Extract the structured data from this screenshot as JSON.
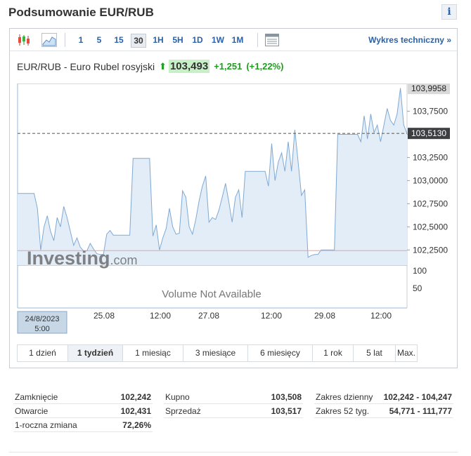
{
  "header": {
    "title": "Podsumowanie EUR/RUB",
    "info_label": "i"
  },
  "toolbar": {
    "timeframes": [
      "1",
      "5",
      "15",
      "30",
      "1H",
      "5H",
      "1D",
      "1W",
      "1M"
    ],
    "active_timeframe": "30",
    "tech_link": "Wykres techniczny »"
  },
  "quote": {
    "name": "EUR/RUB - Euro Rubel rosyjski",
    "price": "103,493",
    "change": "+1,251",
    "change_pct": "(+1,22%)",
    "up_color": "#1f9e1f"
  },
  "chart_data": {
    "type": "area",
    "y_ticks": [
      "103,7500",
      "103,5000",
      "103,2500",
      "103,0000",
      "102,7500",
      "102,5000",
      "102,2500"
    ],
    "ylim": [
      102.085,
      104.05
    ],
    "max_label": "103,9958",
    "last_label": "103,5130",
    "reference_line": 102.242,
    "volume_ticks": [
      "100",
      "50"
    ],
    "volume_note": "Volume Not Available",
    "watermark": "Investing.com",
    "x_ticks": [
      "25.08",
      "12:00",
      "27.08",
      "12:00",
      "29.08",
      "12:00"
    ],
    "start_label_date": "24/8/2023",
    "start_label_time": "5:00",
    "series": [
      {
        "values": [
          102.86,
          102.86,
          102.86,
          102.86,
          102.86,
          102.86,
          102.7,
          102.25,
          102.5,
          102.62,
          102.45,
          102.35,
          102.6,
          102.5,
          102.72,
          102.6,
          102.45,
          102.3,
          102.38,
          102.28,
          102.24,
          102.24,
          102.32,
          102.26,
          102.21,
          102.2,
          102.2,
          102.42,
          102.46,
          102.41,
          102.41,
          102.41,
          102.41,
          102.41,
          102.41,
          103.24,
          103.24,
          103.24,
          103.24,
          103.24,
          103.24,
          102.4,
          102.52,
          102.25,
          102.38,
          102.48,
          102.7,
          102.5,
          102.42,
          102.43,
          102.89,
          102.82,
          102.5,
          102.42,
          102.58,
          102.78,
          102.94,
          103.05,
          102.55,
          102.6,
          102.58,
          102.68,
          102.82,
          102.97,
          102.77,
          102.55,
          102.82,
          102.9,
          102.6,
          103.1,
          103.1,
          103.1,
          103.1,
          103.1,
          103.1,
          103.1,
          102.94,
          103.4,
          103.0,
          103.2,
          103.3,
          103.1,
          103.42,
          103.1,
          103.55,
          103.2,
          102.84,
          102.9,
          102.17,
          102.19,
          102.2,
          102.2,
          102.25,
          102.25,
          102.25,
          102.25,
          102.25,
          103.5,
          103.5,
          103.5,
          103.5,
          103.5,
          103.5,
          103.5,
          103.42,
          103.7,
          103.45,
          103.72,
          103.52,
          103.6,
          103.42,
          103.6,
          103.78,
          103.65,
          103.6,
          103.72,
          104.0,
          103.6,
          103.51
        ]
      }
    ]
  },
  "periods": [
    "1 dzień",
    "1 tydzień",
    "1 miesiąc",
    "3 miesiące",
    "6 miesięcy",
    "1 rok",
    "5 lat",
    "Max."
  ],
  "active_period": "1 tydzień",
  "stats": {
    "col1": [
      {
        "label": "Zamknięcie",
        "value": "102,242"
      },
      {
        "label": "Otwarcie",
        "value": "102,431"
      },
      {
        "label": "1-roczna zmiana",
        "value": "72,26%"
      }
    ],
    "col2": [
      {
        "label": "Kupno",
        "value": "103,508"
      },
      {
        "label": "Sprzedaż",
        "value": "103,517"
      }
    ],
    "col3": [
      {
        "label": "Zakres dzienny",
        "value": "102,242 - 104,247"
      },
      {
        "label": "Zakres 52 tyg.",
        "value": "54,771 - 111,777"
      }
    ]
  }
}
